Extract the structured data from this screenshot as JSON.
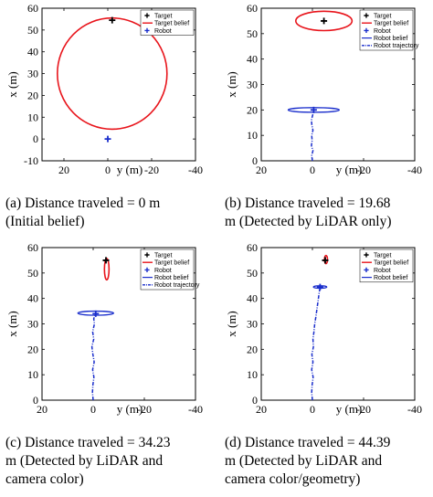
{
  "colors": {
    "target": "#000000",
    "target_belief": "#e8141b",
    "robot": "#1a2ecc",
    "robot_belief": "#1a2ecc",
    "robot_trajectory": "#1a2ecc",
    "axes": "#000000",
    "background": "#ffffff"
  },
  "chart_data": [
    {
      "type": "scatter",
      "panel": "a",
      "xlabel": "y (m)",
      "ylabel": "x (m)",
      "xlim": [
        30,
        -40
      ],
      "ylim": [
        -10,
        60
      ],
      "xticks": [
        20,
        0,
        -20,
        -40
      ],
      "yticks": [
        -10,
        0,
        10,
        20,
        30,
        40,
        50,
        60
      ],
      "legend_position": "top-right",
      "legend": [
        "Target",
        "Target belief",
        "Robot"
      ],
      "target": {
        "y": -2,
        "x": 54.5
      },
      "target_belief": {
        "shape": "ellipse",
        "center_y": -2,
        "center_x": 30,
        "half_width_y": 25,
        "half_height_x": 25.5
      },
      "robot": {
        "y": 0,
        "x": 0
      },
      "robot_belief": null,
      "trajectory": [],
      "caption_lines": [
        "(a) Distance traveled = 0 m",
        "(Initial belief)"
      ]
    },
    {
      "type": "scatter",
      "panel": "b",
      "xlabel": "y (m)",
      "ylabel": "x (m)",
      "xlim": [
        20,
        -40
      ],
      "ylim": [
        0,
        60
      ],
      "xticks": [
        20,
        0,
        -20,
        -40
      ],
      "yticks": [
        0,
        10,
        20,
        30,
        40,
        50,
        60
      ],
      "legend_position": "top-right",
      "legend": [
        "Target",
        "Target belief",
        "Robot",
        "Robot belief",
        "Robot trajectory"
      ],
      "target": {
        "y": -4.5,
        "x": 55
      },
      "target_belief": {
        "shape": "ellipse",
        "center_y": -4.5,
        "center_x": 55,
        "half_width_y": 11,
        "half_height_x": 3.8
      },
      "robot": {
        "y": -0.5,
        "x": 20
      },
      "robot_belief": {
        "shape": "ellipse",
        "center_y": -0.5,
        "center_x": 20,
        "half_width_y": 10,
        "half_height_x": 0.9
      },
      "trajectory": [
        [
          0,
          0
        ],
        [
          0.3,
          2
        ],
        [
          -0.2,
          4
        ],
        [
          0.4,
          6
        ],
        [
          0.1,
          8
        ],
        [
          0.3,
          10
        ],
        [
          -0.2,
          12
        ],
        [
          0.2,
          14
        ],
        [
          0.4,
          16
        ],
        [
          -0.1,
          18
        ],
        [
          -0.5,
          20
        ]
      ],
      "caption_lines": [
        "(b) Distance traveled = 19.68",
        "m (Detected by LiDAR only)"
      ]
    },
    {
      "type": "scatter",
      "panel": "c",
      "xlabel": "y (m)",
      "ylabel": "x (m)",
      "xlim": [
        20,
        -40
      ],
      "ylim": [
        0,
        60
      ],
      "xticks": [
        20,
        0,
        -20,
        -40
      ],
      "yticks": [
        0,
        10,
        20,
        30,
        40,
        50,
        60
      ],
      "legend_position": "top-right",
      "legend": [
        "Target",
        "Target belief",
        "Robot",
        "Robot belief",
        "Robot trajectory"
      ],
      "target": {
        "y": -5,
        "x": 55
      },
      "target_belief": {
        "shape": "ellipse",
        "center_y": -5.3,
        "center_x": 51.5,
        "half_width_y": 0.9,
        "half_height_x": 4.2
      },
      "robot": {
        "y": -1,
        "x": 34
      },
      "robot_belief": {
        "shape": "ellipse",
        "center_y": -1,
        "center_x": 34.2,
        "half_width_y": 7,
        "half_height_x": 0.8
      },
      "trajectory": [
        [
          0,
          0
        ],
        [
          0.3,
          3
        ],
        [
          0.1,
          6
        ],
        [
          -0.3,
          9
        ],
        [
          0.2,
          12
        ],
        [
          -0.4,
          15
        ],
        [
          0.1,
          18
        ],
        [
          0.5,
          21
        ],
        [
          -0.2,
          24
        ],
        [
          0.2,
          27
        ],
        [
          -0.5,
          30
        ],
        [
          -0.2,
          32
        ],
        [
          -1,
          34
        ]
      ],
      "caption_lines": [
        "(c) Distance traveled = 34.23",
        "m (Detected by LiDAR and",
        "camera color)"
      ]
    },
    {
      "type": "scatter",
      "panel": "d",
      "xlabel": "y (m)",
      "ylabel": "x (m)",
      "xlim": [
        20,
        -40
      ],
      "ylim": [
        0,
        60
      ],
      "xticks": [
        20,
        0,
        -20,
        -40
      ],
      "yticks": [
        0,
        10,
        20,
        30,
        40,
        50,
        60
      ],
      "legend_position": "top-right",
      "legend": [
        "Target",
        "Target belief",
        "Robot",
        "Robot belief"
      ],
      "target": {
        "y": -5,
        "x": 55
      },
      "target_belief": {
        "shape": "ellipse",
        "center_y": -5.3,
        "center_x": 55.3,
        "half_width_y": 0.6,
        "half_height_x": 1.6
      },
      "robot": {
        "y": -3,
        "x": 44.5
      },
      "robot_belief": {
        "shape": "ellipse",
        "center_y": -3,
        "center_x": 44.5,
        "half_width_y": 2.6,
        "half_height_x": 0.5
      },
      "trajectory": [
        [
          0,
          0
        ],
        [
          0.3,
          3
        ],
        [
          0.1,
          6
        ],
        [
          -0.3,
          9
        ],
        [
          0.3,
          12
        ],
        [
          -0.2,
          15
        ],
        [
          0.2,
          18
        ],
        [
          -0.4,
          21
        ],
        [
          -0.2,
          24
        ],
        [
          -0.6,
          27
        ],
        [
          -0.9,
          30
        ],
        [
          -1.4,
          33
        ],
        [
          -1.8,
          36
        ],
        [
          -2.2,
          39
        ],
        [
          -2.6,
          42
        ],
        [
          -3,
          44.5
        ]
      ],
      "caption_lines": [
        "(d) Distance traveled = 44.39",
        "m (Detected by LiDAR and",
        "camera color/geometry)"
      ]
    }
  ]
}
